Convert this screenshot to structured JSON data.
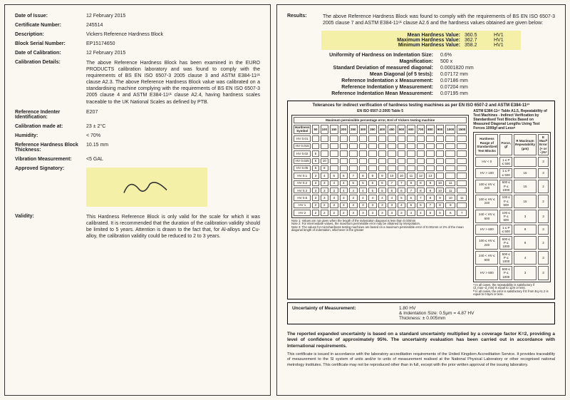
{
  "left": {
    "date_issue_label": "Date of Issue:",
    "date_issue": "12 February 2015",
    "cert_num_label": "Certificate Number:",
    "cert_num": "245514",
    "desc_label": "Description:",
    "desc": "Vickers Reference Hardness Block",
    "serial_label": "Block Serial Number:",
    "serial": "EP15174650",
    "cal_date_label": "Date of Calibration:",
    "cal_date": "12 February 2015",
    "cal_details_label": "Calibration Details:",
    "cal_details": "The above Reference Hardness Block has been examined in the EURO PRODUCTS calibration laboratory and was found to comply with the requirements of BS EN ISO 6507-3 2005 clause 3 and ASTM E384-11ᵉ¹ clause A2.3. The above Reference Hardness Block value was calibrated on a standardising machine complying with the requirements of BS EN ISO 6507-3 2005 clause 4 and ASTM E384-11ᵉ¹ clause A2.4, having hardness scales traceable to the UK National Scales as defined by PTB.",
    "indenter_label": "Reference Indenter Identification:",
    "indenter": "E207",
    "cal_at_label": "Calibration made at:",
    "cal_at": "23 ± 2°C",
    "humidity_label": "Humidity:",
    "humidity": "< 70%",
    "thickness_label": "Reference Hardness Block Thickness:",
    "thickness": "10.15 mm",
    "vib_label": "Vibration Measurement:",
    "vib": "<5 GAL",
    "sig_label": "Approved Signatory:",
    "validity_label": "Validity:",
    "validity": "This Hardness Reference Block is only valid for the scale for which it was calibrated. It is recommended that the duration of the calibration validity should be limited to 5 years. Attention is drawn to the fact that, for Al-alloys and Cu-alloy, the calibration validity could be reduced to 2 to 3 years."
  },
  "right": {
    "results_label": "Results:",
    "results_intro": "The above Reference Hardness Block was found to comply with the requirements of BS EN ISO 6507-3 2005 clause 7 and ASTM E384-11ᵉ¹ clause A2.6 and the hardness values obtained are given below:",
    "hl": [
      {
        "k": "Mean Hardness Value:",
        "v": "360.5",
        "u": "HV1"
      },
      {
        "k": "Maximum Hardness Value:",
        "v": "362.7",
        "u": "HV1"
      },
      {
        "k": "Minimum Hardness Value:",
        "v": "358.2",
        "u": "HV1"
      }
    ],
    "res": [
      {
        "k": "Uniformity of Hardness on Indentation Size:",
        "v": "0.6%"
      },
      {
        "k": "Magnification:",
        "v": "500 x"
      },
      {
        "k": "Standard Deviation of measured diagonal:",
        "v": "0.0001820 mm"
      },
      {
        "k": "Mean Diagonal (of 5 tests):",
        "v": "0.07172 mm"
      },
      {
        "k": "Reference Indentation x Measurement:",
        "v": "0.07186 mm"
      },
      {
        "k": "Reference Indentation y Measurement:",
        "v": "0.07204 mm"
      },
      {
        "k": "Reference Indentation Mean Measurement:",
        "v": "0.07195 mm"
      }
    ],
    "tol_title": "Tolerances for indirect verification of hardness testing machines as per EN ISO 6507-2 and ASTM E384-11ᵉ¹",
    "left_tbl_title": "EN ISO 6507-2:2005 Table 5",
    "left_tbl_sub": "Maximum permissible percentage error, Erel of Vickers testing machine",
    "left_tbl_head": [
      "Hardness Symbol",
      "50",
      "100",
      "150",
      "200",
      "250",
      "300",
      "350",
      "400",
      "450",
      "500",
      "600",
      "700",
      "800",
      "900",
      "1000",
      "1500"
    ],
    "left_tbl_rows": [
      [
        "HV 0.01",
        "",
        "",
        "",
        "",
        "",
        "",
        "",
        "",
        "",
        "",
        "",
        "",
        "",
        "",
        "",
        ""
      ],
      [
        "HV 0.015",
        "",
        "",
        "",
        "",
        "",
        "",
        "",
        "",
        "",
        "",
        "",
        "",
        "",
        "",
        "",
        ""
      ],
      [
        "HV 0.02",
        "5",
        "",
        "",
        "",
        "",
        "",
        "",
        "",
        "",
        "",
        "",
        "",
        "",
        "",
        "",
        ""
      ],
      [
        "HV 0.025",
        "5",
        "10",
        "",
        "",
        "",
        "",
        "",
        "",
        "",
        "",
        "",
        "",
        "",
        "",
        "",
        ""
      ],
      [
        "HV 0.05",
        "5",
        "8",
        "",
        "",
        "",
        "",
        "",
        "",
        "",
        "",
        "",
        "",
        "",
        "",
        "",
        ""
      ],
      [
        "HV 0.1",
        "3",
        "4",
        "5",
        "6",
        "7",
        "8",
        "8",
        "9",
        "10",
        "10",
        "11",
        "12",
        "13",
        "",
        "",
        ""
      ],
      [
        "HV 0.2",
        "3",
        "3",
        "4",
        "4",
        "5",
        "5",
        "6",
        "6",
        "7",
        "7",
        "8",
        "8",
        "9",
        "10",
        "11",
        ""
      ],
      [
        "HV 0.3",
        "3",
        "3",
        "3",
        "4",
        "4",
        "4",
        "5",
        "5",
        "5",
        "6",
        "7",
        "8",
        "9",
        "10",
        "11",
        ""
      ],
      [
        "HV 0.5",
        "3",
        "3",
        "3",
        "3",
        "3",
        "4",
        "4",
        "4",
        "4",
        "5",
        "6",
        "7",
        "8",
        "9",
        "10",
        "11"
      ],
      [
        "HV 1",
        "2",
        "2",
        "3",
        "3",
        "3",
        "3",
        "3",
        "3",
        "3",
        "4",
        "5",
        "6",
        "7",
        "8",
        "9",
        ""
      ],
      [
        "HV 2",
        "2",
        "2",
        "2",
        "2",
        "3",
        "3",
        "3",
        "3",
        "3",
        "3",
        "4",
        "4",
        "5",
        "5",
        "6",
        "7"
      ]
    ],
    "left_notes": "Note 1: Values are not given when the length of the indentation diagonal is less than 0.020mm\nNote 2: For intermediate values, the maximum permissible error may be obtained by interpolation.\nNote 3: The values for microhardness testing machines are based on a maximum permissible error of 0.001mm or 2% of the mean diagonal length of indentation, whichever is the greater",
    "right_tbl_title": "ASTM E384-11ᵉ¹ Table A1.5, Repeatability of Test Machines - Indirect Verification by Standardised Test Blocks Based on Measured Diagonal Lengths Using Test Forces 1000gf and Lessᴬ",
    "right_tbl_head": [
      "Hardness Range of Standardized Test Blocks",
      "Force, gf",
      "R Maximum Repeatability (μm)",
      "E Maxᴮ Error (+ or −)%ᶜ"
    ],
    "right_tbl_rows": [
      [
        "HV < 0",
        "1 ≤ P ≤ 500",
        "",
        "3"
      ],
      [
        "HV > 100",
        "1 ≤ P ≤ 500",
        "15",
        "3"
      ],
      [
        "100 ≤ HV ≤ 240",
        "500 ≤ P ≤ 1000",
        "15",
        "2"
      ],
      [
        "100 ≤ HV ≤ 240",
        "100 ≤ P ≤ 500",
        "15",
        "2"
      ],
      [
        "240 < HV ≤ 600",
        "100 ≤ P ≤ 500",
        "3",
        "3"
      ],
      [
        "HV > 600",
        "1 ≤ P ≤ 500",
        "9",
        "3"
      ],
      [
        "100 ≤ HV ≤ 240",
        "500 ≤ P ≤ 1000",
        "9",
        "2"
      ],
      [
        "240 < HV ≤ 600",
        "500 ≤ P ≤ 1000",
        "4",
        "3"
      ],
      [
        "HV > 600",
        "500 ≤ P ≤ 1000",
        "3",
        "3"
      ]
    ],
    "right_notes": "ᴬ In all cases, the repeatability is satisfactory if (d_max−d_min) is equal to 1μm or less.\nᴮ In all cases, the error is satisfactory if E from Eq A1.2 is equal to 0.5μm or less.",
    "uom_label": "Uncertainty of Measurement:",
    "uom_v1": "1.80 HV",
    "uom_v2": "& Indentation Size: 0.5μm = 4.87 HV",
    "uom_v3": "Thickness: ± 0.005mm",
    "footer_bold": "The reported expanded uncertainty is based on a standard uncertainty multiplied by a coverage factor K=2, providing a level of confidence of approximately 95%. The uncertainty evaluation has been carried out in accordance with International requirements.",
    "footer_small": "This certificate is issued in accordance with the laboratory accreditation requirements of the United Kingdom Accreditation Service. It provides traceability of measurement to the SI system of units and/or to units of measurement realised at the National Physical Laboratory or other recognised national metrology institutes. This certificate may not be reproduced other than in full, except with the prior written approval of the issuing laboratory."
  }
}
